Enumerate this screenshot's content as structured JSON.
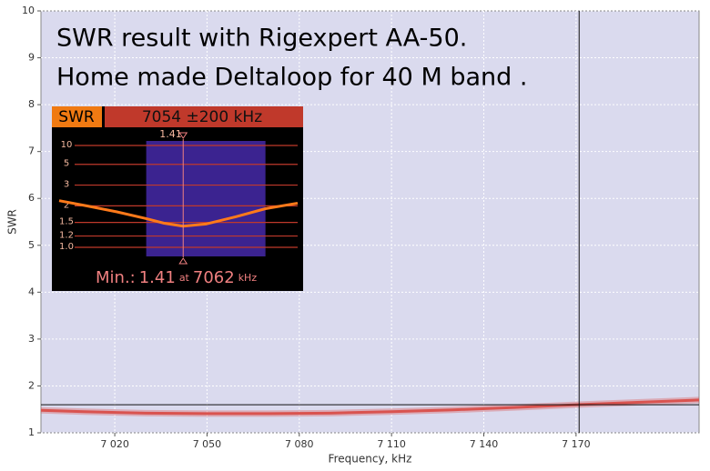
{
  "chart_data": [
    {
      "type": "line",
      "ylabel": "SWR",
      "xlabel": "Frequency, kHz",
      "annotations": [
        "SWR result with Rigexpert AA-50.",
        "Home made Deltaloop for 40 M band ."
      ],
      "x": [
        6996,
        7010,
        7030,
        7050,
        7070,
        7090,
        7110,
        7130,
        7150,
        7170,
        7190,
        7210
      ],
      "series": [
        {
          "color": "#d9534f",
          "values": [
            1.48,
            1.45,
            1.42,
            1.41,
            1.41,
            1.42,
            1.45,
            1.49,
            1.54,
            1.6,
            1.65,
            1.7
          ]
        }
      ],
      "xlim": [
        6996,
        7210
      ],
      "xticks": [
        {
          "value": 7020,
          "label": "7 020"
        },
        {
          "value": 7050,
          "label": "7 050"
        },
        {
          "value": 7080,
          "label": "7 080"
        },
        {
          "value": 7110,
          "label": "7 110"
        },
        {
          "value": 7140,
          "label": "7 140"
        },
        {
          "value": 7170,
          "label": "7 170"
        }
      ],
      "ylim": [
        1,
        10
      ],
      "yticks": [
        1,
        2,
        3,
        4,
        5,
        6,
        7,
        8,
        9,
        10
      ],
      "grid": true,
      "cursor": {
        "x": 7171,
        "y": 1.6
      }
    },
    {
      "type": "line",
      "yscale": "reflection",
      "label": "SWR",
      "title": "7054 ±200 kHz",
      "x": [
        6854,
        6900,
        6950,
        7000,
        7030,
        7062,
        7100,
        7150,
        7200,
        7254
      ],
      "series": [
        {
          "color": "#ff7a1a",
          "values": [
            2.2,
            2.0,
            1.8,
            1.6,
            1.48,
            1.41,
            1.46,
            1.65,
            1.9,
            2.1
          ]
        }
      ],
      "xlim": [
        6854,
        7254
      ],
      "band": [
        7000,
        7200
      ],
      "ylim": [
        1,
        10
      ],
      "yticks": [
        10,
        5,
        3,
        2,
        1.5,
        1.2,
        {
          "value": 1,
          "label": "1.0"
        }
      ],
      "marker": {
        "value": 1.41,
        "x": 7062
      },
      "min_label": "Min.:",
      "at": "at",
      "unit": "kHz"
    }
  ]
}
